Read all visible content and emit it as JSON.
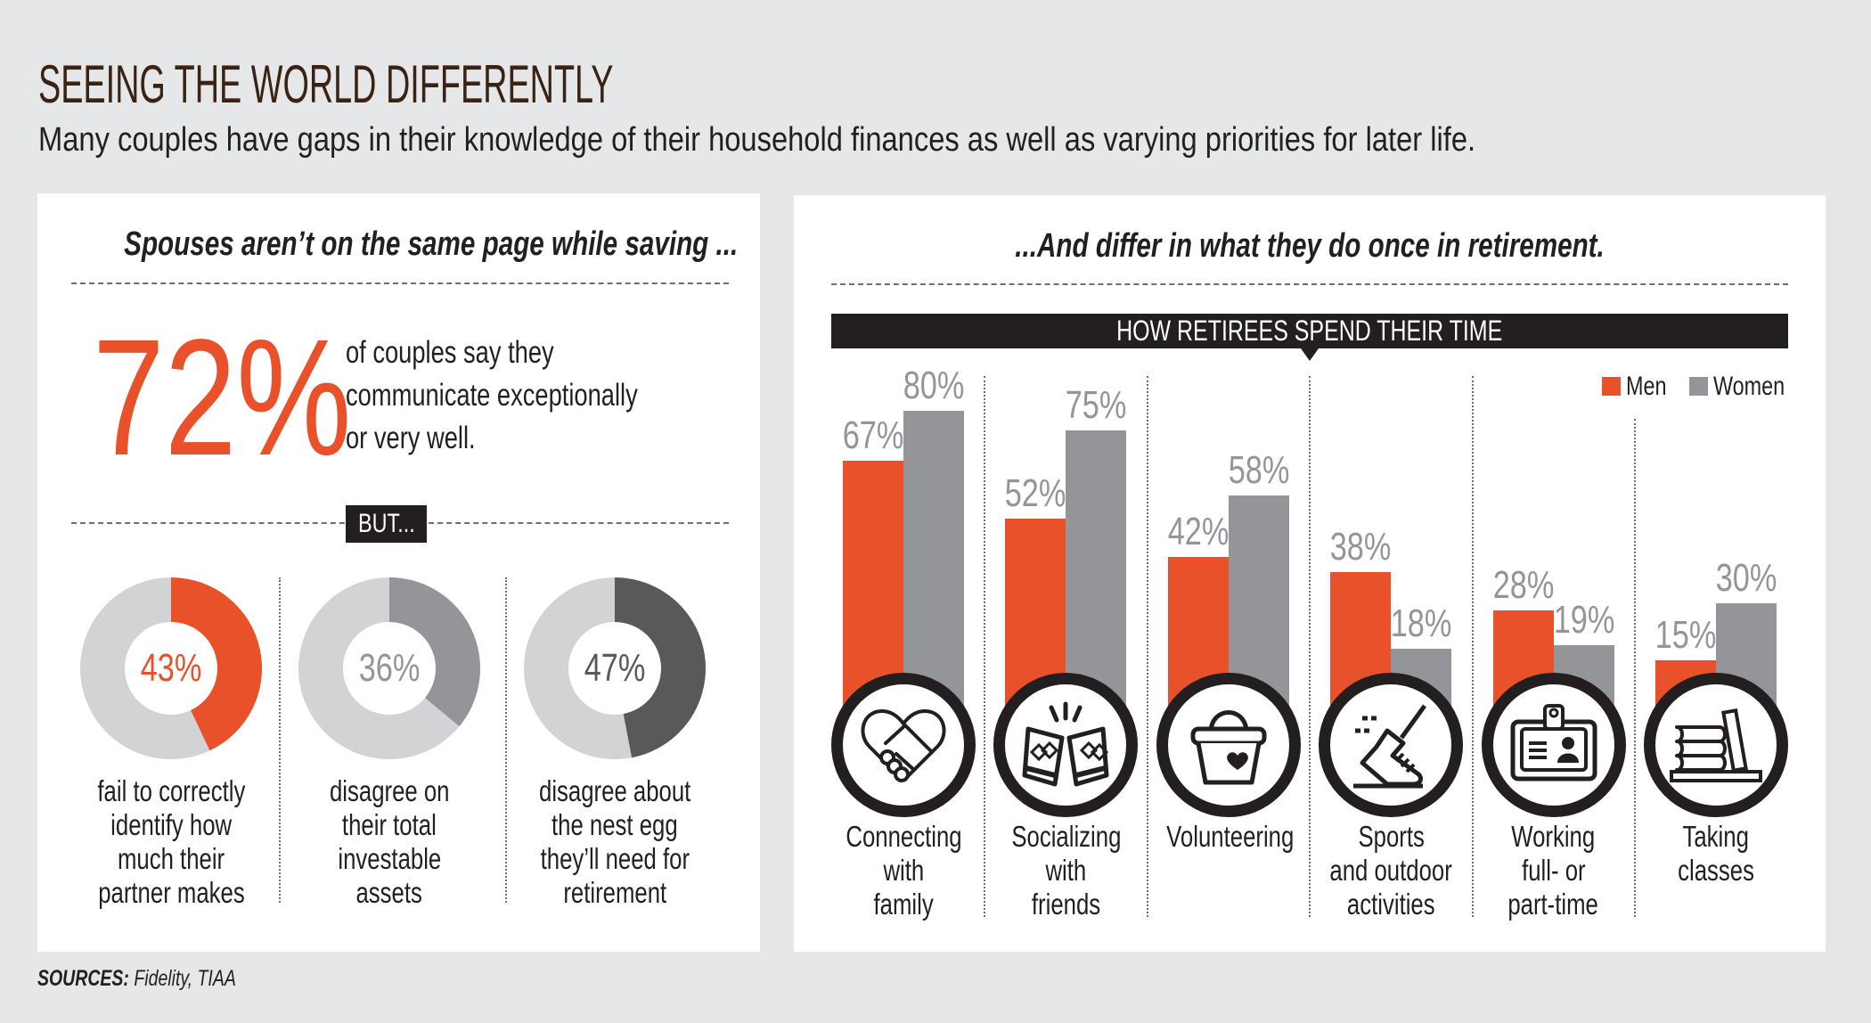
{
  "header": {
    "title": "SEEING THE WORLD DIFFERENTLY",
    "subtitle": "Many couples have gaps in their knowledge of their household finances as well as varying priorities for later life."
  },
  "left_panel": {
    "heading": "Spouses aren’t on the same page while saving ...",
    "big_stat": {
      "value": "72%",
      "lines": [
        "of couples say they",
        "communicate exceptionally",
        "or very well."
      ]
    },
    "divider_label": "BUT...",
    "donuts": [
      {
        "value": "43%",
        "percent": 43,
        "caption": [
          "fail to correctly",
          "identify how",
          "much their",
          "partner makes"
        ],
        "color": "#e8512a",
        "text_color": "#e8512a"
      },
      {
        "value": "36%",
        "percent": 36,
        "caption": [
          "disagree on",
          "their total",
          "investable",
          "assets"
        ],
        "color": "#939598",
        "text_color": "#939598"
      },
      {
        "value": "47%",
        "percent": 47,
        "caption": [
          "disagree about",
          "the nest egg",
          "they’ll need for",
          "retirement"
        ],
        "color": "#58595b",
        "text_color": "#58595b"
      }
    ]
  },
  "right_panel": {
    "heading": "...And differ in what they do once in retirement.",
    "icons": [
      "handshake-heart-icon",
      "toasting-glasses-icon",
      "bucket-heart-icon",
      "running-shoe-icon",
      "id-badge-icon",
      "books-icon"
    ]
  },
  "chart_data": {
    "type": "bar",
    "title": "HOW RETIREES SPEND THEIR TIME",
    "categories": [
      [
        "Connecting",
        "with",
        "family"
      ],
      [
        "Socializing",
        "with",
        "friends"
      ],
      [
        "Volunteering"
      ],
      [
        "Sports",
        "and outdoor",
        "activities"
      ],
      [
        "Working",
        "full- or",
        "part-time"
      ],
      [
        "Taking",
        "classes"
      ]
    ],
    "series": [
      {
        "name": "Men",
        "color": "#e8512a",
        "values": [
          67,
          52,
          42,
          38,
          28,
          15
        ]
      },
      {
        "name": "Women",
        "color": "#939598",
        "values": [
          80,
          75,
          58,
          18,
          19,
          30
        ]
      }
    ],
    "value_suffix": "%",
    "ylim": [
      0,
      100
    ],
    "legend": "top-right",
    "grid": false
  },
  "footer": {
    "sources_label": "SOURCES:",
    "sources_text": "Fidelity, TIAA"
  },
  "colors": {
    "accent": "#e8512a",
    "gray": "#939598",
    "light_gray": "#d1d3d4",
    "dark_gray": "#58595b",
    "background": "#e6e7e8",
    "ink": "#231f20"
  }
}
